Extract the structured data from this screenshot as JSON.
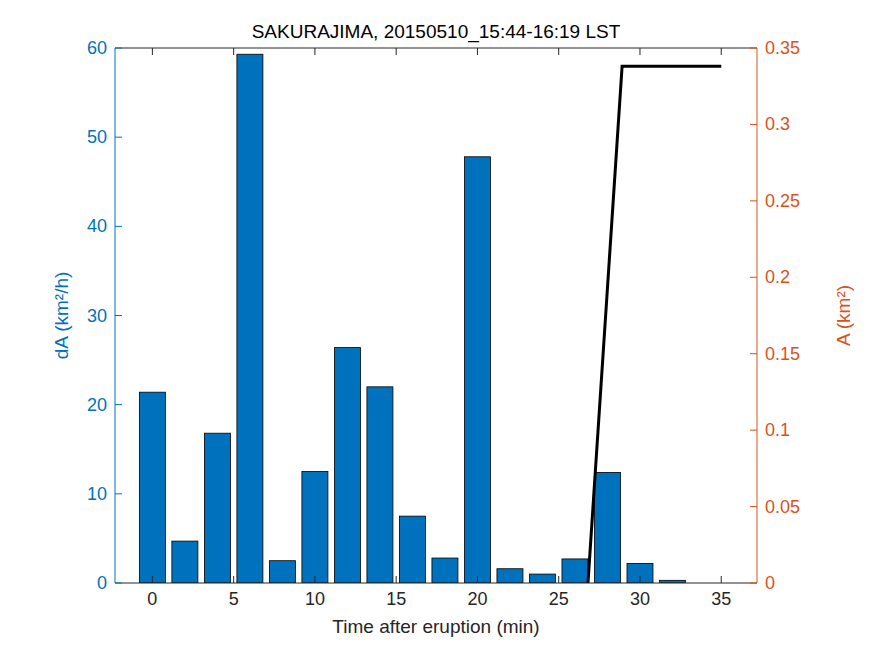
{
  "chart_data": {
    "type": "bar",
    "title": "SAKURAJIMA, 20150510_15:44-16:19 LST",
    "x_label": "Time after eruption (min)",
    "y_label": "dA (km²/h)",
    "y2_label": "A (km²)",
    "xlim": [
      -2.3,
      37.2
    ],
    "xticks": [
      0,
      5,
      10,
      15,
      20,
      25,
      30,
      35
    ],
    "ylim": [
      0,
      60
    ],
    "yticks": [
      0,
      10,
      20,
      30,
      40,
      50,
      60
    ],
    "y2lim": [
      0,
      0.35
    ],
    "y2ticks": [
      0,
      0.05,
      0.1,
      0.15,
      0.2,
      0.25,
      0.3,
      0.35
    ],
    "series": [
      {
        "type": "bar",
        "color": "#0072bd",
        "x": [
          0,
          2,
          4,
          6,
          8,
          10,
          12,
          14,
          16,
          18,
          20,
          22,
          24,
          26,
          28,
          30,
          32
        ],
        "values": [
          21.4,
          4.7,
          16.8,
          59.3,
          2.5,
          12.5,
          26.4,
          22.0,
          7.5,
          2.8,
          47.8,
          1.6,
          1.0,
          2.7,
          12.4,
          2.2,
          0.3
        ]
      },
      {
        "type": "line",
        "color": "#000000",
        "axis": "y2",
        "x": [
          26.8,
          28.9,
          35
        ],
        "values": [
          0,
          0.338,
          0.338
        ]
      }
    ]
  }
}
